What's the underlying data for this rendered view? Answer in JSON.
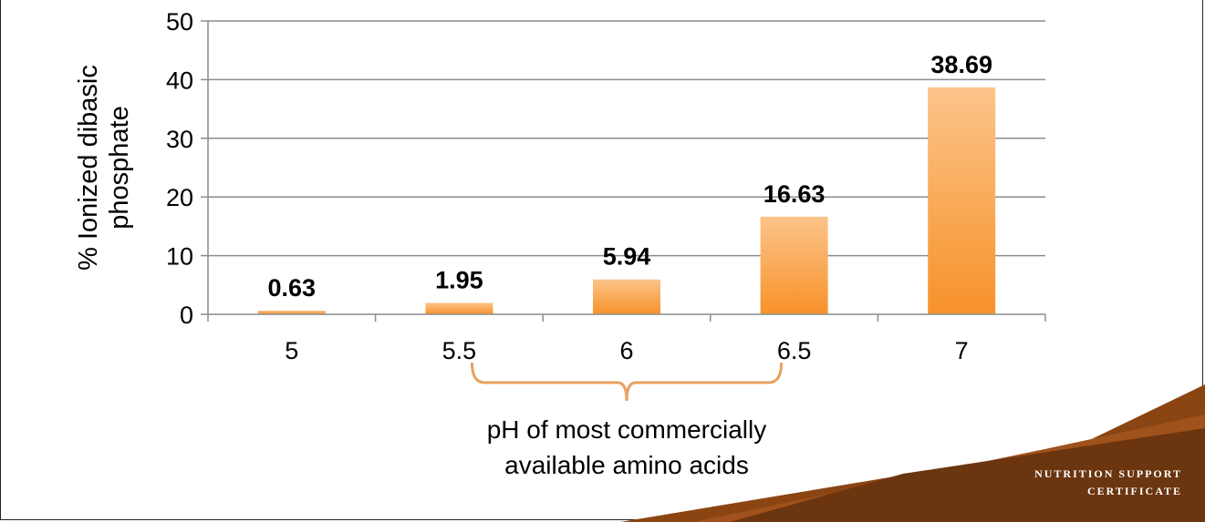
{
  "chart_data": {
    "type": "bar",
    "categories": [
      "5",
      "5.5",
      "6",
      "6.5",
      "7"
    ],
    "values": [
      0.63,
      1.95,
      5.94,
      16.63,
      38.69
    ],
    "data_labels": [
      "0.63",
      "1.95",
      "5.94",
      "16.63",
      "38.69"
    ],
    "title": "",
    "xlabel": "",
    "ylabel": "% Ionized dibasic phosphate",
    "ylabel_lines": [
      "% Ionized dibasic",
      "phosphate"
    ],
    "ylim": [
      0,
      50
    ],
    "yticks": [
      0,
      10,
      20,
      30,
      40,
      50
    ],
    "grid": true,
    "legend": "none",
    "bar_color_top": "#fcc48a",
    "bar_color_bottom": "#f7922a",
    "annotation": {
      "lines": [
        "pH of most commercially",
        "available amino acids"
      ],
      "bracket_from": "5.5",
      "bracket_to": "6.5",
      "bracket_color": "#e8a060"
    }
  },
  "footer": {
    "line1": "NUTRITION SUPPORT",
    "line2": "CERTIFICATE",
    "colors": [
      "#8b4513",
      "#a0521c",
      "#6b3510"
    ]
  }
}
